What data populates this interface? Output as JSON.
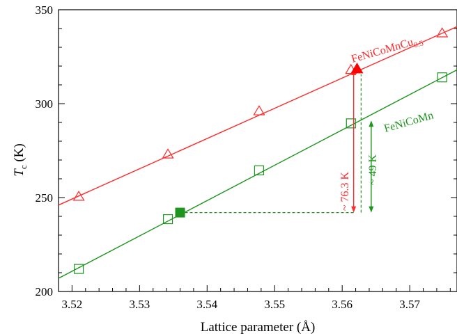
{
  "chart_data": {
    "type": "scatter",
    "xlabel": "Lattice parameter (Å)",
    "ylabel_main": "T",
    "ylabel_sub": "c",
    "ylabel_unit": " (K)",
    "xlim": [
      3.518,
      3.577
    ],
    "ylim": [
      200,
      350
    ],
    "xticks": [
      3.52,
      3.53,
      3.54,
      3.55,
      3.56,
      3.57
    ],
    "yticks": [
      200,
      250,
      300,
      350
    ],
    "grid": false,
    "series": [
      {
        "name": "FeNiCoMnCu",
        "name_sub": "0.5",
        "color": "#ff2a2a",
        "marker": "triangle-open",
        "points": [
          [
            3.521,
            250.5
          ],
          [
            3.5342,
            273
          ],
          [
            3.5477,
            296
          ],
          [
            3.5613,
            318
          ],
          [
            3.5748,
            337.5
          ]
        ],
        "fit": [
          [
            3.518,
            246
          ],
          [
            3.577,
            341
          ]
        ]
      },
      {
        "name": "FeNiCoMn",
        "color": "#1e941e",
        "marker": "square-open",
        "points": [
          [
            3.521,
            212
          ],
          [
            3.5342,
            238.5
          ],
          [
            3.5477,
            264.5
          ],
          [
            3.5613,
            289.5
          ],
          [
            3.5748,
            314
          ]
        ],
        "fit": [
          [
            3.518,
            207
          ],
          [
            3.577,
            318
          ]
        ]
      }
    ],
    "highlight_points": [
      {
        "x": 3.536,
        "y": 242,
        "marker": "square-filled",
        "color": "#1e941e"
      },
      {
        "x": 3.5622,
        "y": 318.5,
        "marker": "triangle-filled",
        "color": "#ff0000"
      }
    ],
    "annotations": {
      "dashed_horizontal": {
        "x_from": 3.536,
        "x_to": 3.5618,
        "y": 242
      },
      "red_arrow": {
        "x": 3.5617,
        "y_from": 242,
        "y_to": 318.5,
        "label": "~ 76.3 K"
      },
      "green_dashed": {
        "x": 3.5628,
        "y_from": 242,
        "y_to": 318.5
      },
      "green_arrow": {
        "x": 3.5643,
        "y_from": 242,
        "y_to": 291,
        "label": "~ 49 K"
      }
    }
  }
}
